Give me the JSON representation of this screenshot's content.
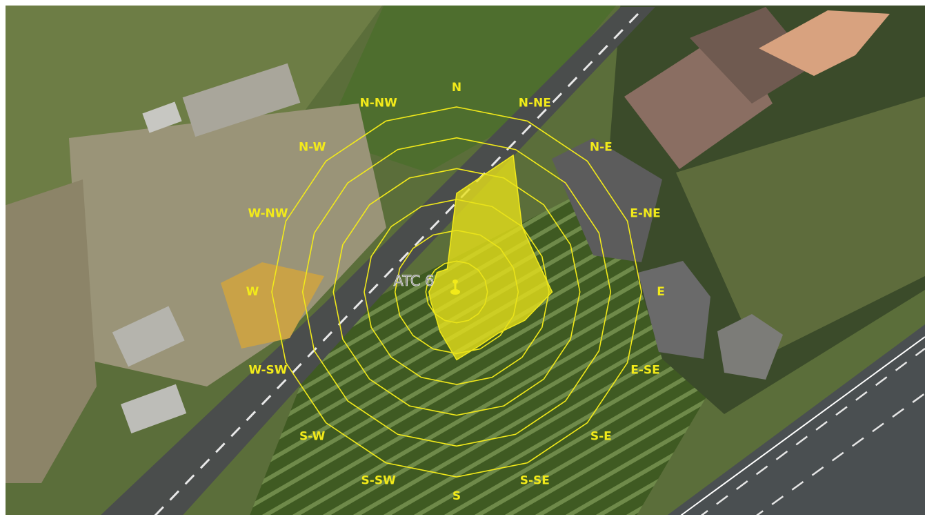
{
  "map": {
    "station_label": "ATC 6",
    "marker_icon": "pushpin-icon",
    "colors": {
      "rings": "#f2ea1a",
      "fill": "#e8e21a",
      "labels": "#f2ea1a",
      "station_text": "#8e8e8e"
    }
  },
  "chart_data": {
    "type": "radar",
    "title": "",
    "directions": [
      "N",
      "N-NE",
      "N-E",
      "E-NE",
      "E",
      "E-SE",
      "S-E",
      "S-SE",
      "S",
      "S-SW",
      "S-W",
      "W-SW",
      "W",
      "W-NW",
      "N-W",
      "N-NW"
    ],
    "ring_count": 6,
    "rlim": [
      0,
      6
    ],
    "grid": true,
    "series": [
      {
        "values": [
          3.2,
          4.8,
          3.0,
          2.8,
          3.1,
          2.4,
          1.9,
          1.9,
          2.2,
          1.4,
          1.0,
          0.9,
          0.9,
          0.8,
          0.9,
          0.8
        ]
      }
    ]
  }
}
